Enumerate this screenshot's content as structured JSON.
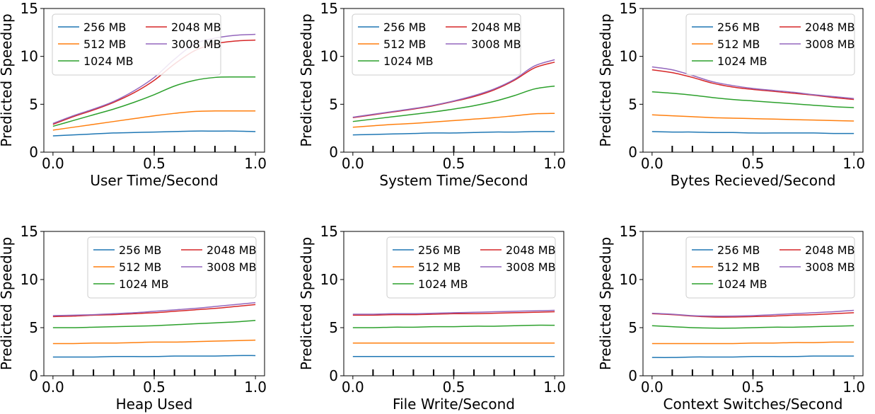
{
  "colors": {
    "256 MB": "#1f77b4",
    "512 MB": "#ff7f0e",
    "1024 MB": "#2ca02c",
    "2048 MB": "#d62728",
    "3008 MB": "#9467bd"
  },
  "chart_data": [
    {
      "type": "line",
      "xlabel": "User Time/Second",
      "ylabel": "Predicted Speedup",
      "xlim": [
        0,
        1
      ],
      "ylim": [
        0,
        15
      ],
      "xticks": [
        "0.0",
        "0.5",
        "1.0"
      ],
      "yticks": [
        "0",
        "5",
        "10",
        "15"
      ],
      "legend": "top-left",
      "x": [
        0,
        0.1,
        0.2,
        0.3,
        0.4,
        0.5,
        0.6,
        0.7,
        0.8,
        0.9,
        1.0
      ],
      "series": [
        {
          "name": "256 MB",
          "values": [
            1.7,
            1.8,
            1.9,
            2.0,
            2.05,
            2.1,
            2.15,
            2.2,
            2.2,
            2.2,
            2.15
          ]
        },
        {
          "name": "512 MB",
          "values": [
            2.3,
            2.6,
            2.9,
            3.2,
            3.5,
            3.8,
            4.05,
            4.25,
            4.3,
            4.3,
            4.3
          ]
        },
        {
          "name": "1024 MB",
          "values": [
            2.7,
            3.3,
            3.9,
            4.5,
            5.2,
            6.0,
            6.9,
            7.5,
            7.8,
            7.85,
            7.85
          ]
        },
        {
          "name": "2048 MB",
          "values": [
            2.9,
            3.7,
            4.4,
            5.2,
            6.2,
            7.5,
            9.2,
            10.6,
            11.3,
            11.6,
            11.7
          ]
        },
        {
          "name": "3008 MB",
          "values": [
            3.0,
            3.8,
            4.5,
            5.3,
            6.4,
            7.8,
            9.7,
            11.3,
            11.9,
            12.2,
            12.3
          ]
        }
      ]
    },
    {
      "type": "line",
      "xlabel": "System Time/Second",
      "ylabel": "Predicted Speedup",
      "xlim": [
        0,
        1
      ],
      "ylim": [
        0,
        15
      ],
      "xticks": [
        "0.0",
        "0.5",
        "1.0"
      ],
      "yticks": [
        "0",
        "5",
        "10",
        "15"
      ],
      "legend": "top",
      "x": [
        0,
        0.1,
        0.2,
        0.3,
        0.4,
        0.5,
        0.6,
        0.7,
        0.8,
        0.9,
        1.0
      ],
      "series": [
        {
          "name": "256 MB",
          "values": [
            1.8,
            1.85,
            1.9,
            1.95,
            2.0,
            2.0,
            2.05,
            2.1,
            2.1,
            2.15,
            2.15
          ]
        },
        {
          "name": "512 MB",
          "values": [
            2.6,
            2.75,
            2.9,
            3.0,
            3.15,
            3.3,
            3.45,
            3.6,
            3.8,
            4.0,
            4.05
          ]
        },
        {
          "name": "1024 MB",
          "values": [
            3.2,
            3.45,
            3.7,
            3.95,
            4.2,
            4.5,
            4.85,
            5.3,
            5.9,
            6.6,
            6.9
          ]
        },
        {
          "name": "2048 MB",
          "values": [
            3.6,
            3.9,
            4.2,
            4.5,
            4.85,
            5.3,
            5.8,
            6.5,
            7.5,
            8.8,
            9.4
          ]
        },
        {
          "name": "3008 MB",
          "values": [
            3.65,
            3.95,
            4.25,
            4.55,
            4.9,
            5.35,
            5.9,
            6.6,
            7.6,
            9.0,
            9.65
          ]
        }
      ]
    },
    {
      "type": "line",
      "xlabel": "Bytes Recieved/Second",
      "ylabel": "Predicted Speedup",
      "xlim": [
        0,
        1
      ],
      "ylim": [
        0,
        15
      ],
      "xticks": [
        "0.0",
        "0.5",
        "1.0"
      ],
      "yticks": [
        "0",
        "5",
        "10",
        "15"
      ],
      "legend": "top-right",
      "x": [
        0,
        0.1,
        0.2,
        0.3,
        0.4,
        0.5,
        0.6,
        0.7,
        0.8,
        0.9,
        1.0
      ],
      "series": [
        {
          "name": "256 MB",
          "values": [
            2.15,
            2.1,
            2.1,
            2.05,
            2.05,
            2.0,
            2.0,
            2.0,
            2.0,
            1.95,
            1.95
          ]
        },
        {
          "name": "512 MB",
          "values": [
            3.9,
            3.8,
            3.7,
            3.6,
            3.55,
            3.5,
            3.45,
            3.4,
            3.35,
            3.3,
            3.25
          ]
        },
        {
          "name": "1024 MB",
          "values": [
            6.3,
            6.15,
            5.95,
            5.7,
            5.5,
            5.35,
            5.2,
            5.05,
            4.9,
            4.75,
            4.65
          ]
        },
        {
          "name": "2048 MB",
          "values": [
            8.6,
            8.3,
            7.8,
            7.2,
            6.8,
            6.55,
            6.35,
            6.15,
            5.95,
            5.7,
            5.5
          ]
        },
        {
          "name": "3008 MB",
          "values": [
            8.9,
            8.6,
            8.0,
            7.35,
            6.95,
            6.65,
            6.45,
            6.25,
            6.0,
            5.8,
            5.6
          ]
        }
      ]
    },
    {
      "type": "line",
      "xlabel": "Heap Used",
      "ylabel": "Predicted Speedup",
      "xlim": [
        0,
        1
      ],
      "ylim": [
        0,
        15
      ],
      "xticks": [
        "0.0",
        "0.5",
        "1.0"
      ],
      "yticks": [
        "0",
        "5",
        "10",
        "15"
      ],
      "legend": "top-right",
      "x": [
        0,
        0.1,
        0.2,
        0.3,
        0.4,
        0.5,
        0.6,
        0.7,
        0.8,
        0.9,
        1.0
      ],
      "series": [
        {
          "name": "256 MB",
          "values": [
            1.95,
            1.95,
            1.95,
            2.0,
            2.0,
            2.0,
            2.05,
            2.05,
            2.05,
            2.1,
            2.1
          ]
        },
        {
          "name": "512 MB",
          "values": [
            3.35,
            3.35,
            3.4,
            3.4,
            3.45,
            3.5,
            3.5,
            3.55,
            3.6,
            3.65,
            3.7
          ]
        },
        {
          "name": "1024 MB",
          "values": [
            5.0,
            5.0,
            5.05,
            5.1,
            5.15,
            5.2,
            5.3,
            5.4,
            5.5,
            5.6,
            5.75
          ]
        },
        {
          "name": "2048 MB",
          "values": [
            6.15,
            6.2,
            6.3,
            6.35,
            6.45,
            6.55,
            6.7,
            6.85,
            7.0,
            7.2,
            7.4
          ]
        },
        {
          "name": "3008 MB",
          "values": [
            6.25,
            6.3,
            6.35,
            6.45,
            6.55,
            6.7,
            6.85,
            7.0,
            7.2,
            7.4,
            7.6
          ]
        }
      ]
    },
    {
      "type": "line",
      "xlabel": "File Write/Second",
      "ylabel": "Predicted Speedup",
      "xlim": [
        0,
        1
      ],
      "ylim": [
        0,
        15
      ],
      "xticks": [
        "0.0",
        "0.5",
        "1.0"
      ],
      "yticks": [
        "0",
        "5",
        "10",
        "15"
      ],
      "legend": "top-right",
      "x": [
        0,
        0.1,
        0.2,
        0.3,
        0.4,
        0.5,
        0.6,
        0.7,
        0.8,
        0.9,
        1.0
      ],
      "series": [
        {
          "name": "256 MB",
          "values": [
            2.0,
            2.0,
            2.0,
            2.0,
            2.0,
            2.0,
            2.0,
            2.0,
            2.0,
            2.0,
            2.0
          ]
        },
        {
          "name": "512 MB",
          "values": [
            3.4,
            3.4,
            3.4,
            3.4,
            3.4,
            3.4,
            3.4,
            3.4,
            3.4,
            3.4,
            3.4
          ]
        },
        {
          "name": "1024 MB",
          "values": [
            5.0,
            5.0,
            5.05,
            5.05,
            5.1,
            5.1,
            5.15,
            5.15,
            5.2,
            5.25,
            5.25
          ]
        },
        {
          "name": "2048 MB",
          "values": [
            6.3,
            6.3,
            6.35,
            6.35,
            6.4,
            6.45,
            6.45,
            6.5,
            6.55,
            6.6,
            6.65
          ]
        },
        {
          "name": "3008 MB",
          "values": [
            6.4,
            6.4,
            6.45,
            6.45,
            6.5,
            6.55,
            6.6,
            6.65,
            6.7,
            6.75,
            6.8
          ]
        }
      ]
    },
    {
      "type": "line",
      "xlabel": "Context Switches/Second",
      "ylabel": "Predicted Speedup",
      "xlim": [
        0,
        1
      ],
      "ylim": [
        0,
        15
      ],
      "xticks": [
        "0.0",
        "0.5",
        "1.0"
      ],
      "yticks": [
        "0",
        "5",
        "10",
        "15"
      ],
      "legend": "top-right",
      "x": [
        0,
        0.1,
        0.2,
        0.3,
        0.4,
        0.5,
        0.6,
        0.7,
        0.8,
        0.9,
        1.0
      ],
      "series": [
        {
          "name": "256 MB",
          "values": [
            1.9,
            1.9,
            1.95,
            1.95,
            1.95,
            2.0,
            2.0,
            2.0,
            2.05,
            2.05,
            2.05
          ]
        },
        {
          "name": "512 MB",
          "values": [
            3.35,
            3.35,
            3.35,
            3.35,
            3.35,
            3.4,
            3.4,
            3.45,
            3.45,
            3.5,
            3.5
          ]
        },
        {
          "name": "1024 MB",
          "values": [
            5.2,
            5.1,
            5.0,
            4.95,
            4.95,
            5.0,
            5.05,
            5.05,
            5.1,
            5.15,
            5.2
          ]
        },
        {
          "name": "2048 MB",
          "values": [
            6.45,
            6.35,
            6.2,
            6.1,
            6.1,
            6.15,
            6.2,
            6.3,
            6.35,
            6.45,
            6.55
          ]
        },
        {
          "name": "3008 MB",
          "values": [
            6.5,
            6.4,
            6.25,
            6.2,
            6.2,
            6.25,
            6.35,
            6.45,
            6.55,
            6.65,
            6.8
          ]
        }
      ]
    }
  ]
}
